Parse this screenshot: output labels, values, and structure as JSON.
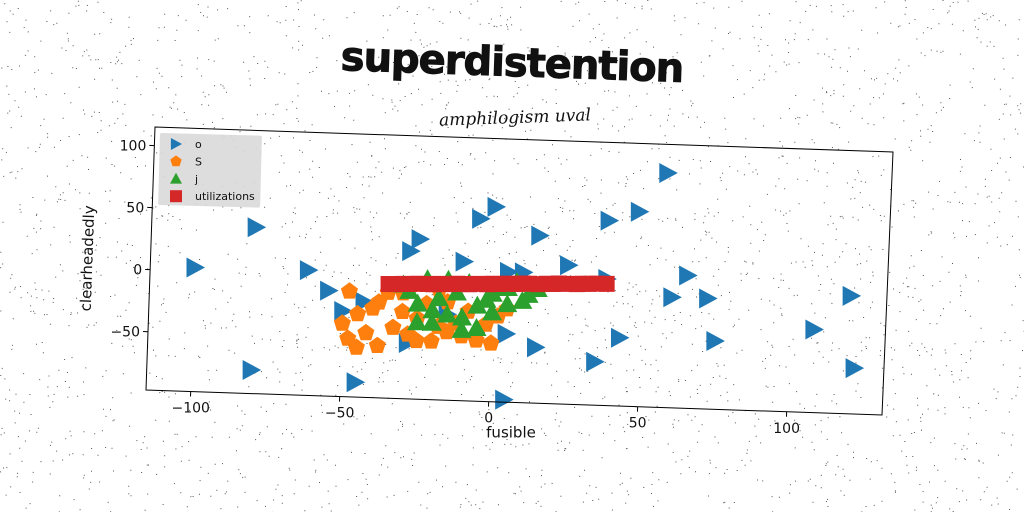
{
  "chart_data": {
    "type": "scatter",
    "title": "superdistention",
    "subtitle": "amphilogism uval",
    "xlabel": "fusible",
    "ylabel": "clearheadedly",
    "xlim": [
      -115,
      132
    ],
    "ylim": [
      -97,
      115
    ],
    "xticks": [
      -100,
      -50,
      0,
      50,
      100
    ],
    "yticks": [
      -50,
      0,
      50,
      100
    ],
    "legend_position": "top-left",
    "grid": false,
    "series": [
      {
        "name": "o",
        "marker": "triangle-right",
        "color": "#1f77b4",
        "points": [
          [
            -100,
            3
          ],
          [
            -80,
            37
          ],
          [
            -62,
            4
          ],
          [
            -55,
            -12
          ],
          [
            -50,
            -28
          ],
          [
            -43,
            -20
          ],
          [
            -28,
            22
          ],
          [
            -25,
            32
          ],
          [
            -15,
            -28
          ],
          [
            -10,
            15
          ],
          [
            -5,
            50
          ],
          [
            0,
            60
          ],
          [
            5,
            8
          ],
          [
            10,
            8
          ],
          [
            5,
            -42
          ],
          [
            15,
            38
          ],
          [
            15,
            -52
          ],
          [
            25,
            15
          ],
          [
            35,
            -62
          ],
          [
            38,
            5
          ],
          [
            38,
            52
          ],
          [
            43,
            -42
          ],
          [
            48,
            60
          ],
          [
            57,
            92
          ],
          [
            60,
            -8
          ],
          [
            65,
            10
          ],
          [
            72,
            -8
          ],
          [
            75,
            -42
          ],
          [
            108,
            -30
          ],
          [
            120,
            -2
          ],
          [
            122,
            -60
          ],
          [
            -80,
            -78
          ],
          [
            -45,
            -85
          ],
          [
            5,
            -95
          ],
          [
            -28,
            -52
          ]
        ]
      },
      {
        "name": "S",
        "marker": "pentagon",
        "color": "#ff7f0e",
        "points": [
          [
            -48,
            -12
          ],
          [
            -45,
            -30
          ],
          [
            -50,
            -38
          ],
          [
            -48,
            -50
          ],
          [
            -45,
            -57
          ],
          [
            -42,
            -45
          ],
          [
            -38,
            -55
          ],
          [
            -38,
            -20
          ],
          [
            -35,
            -12
          ],
          [
            -33,
            -40
          ],
          [
            -30,
            -27
          ],
          [
            -28,
            -45
          ],
          [
            -25,
            -32
          ],
          [
            -22,
            -20
          ],
          [
            -20,
            -50
          ],
          [
            -18,
            -38
          ],
          [
            -15,
            -42
          ],
          [
            -12,
            -35
          ],
          [
            -10,
            -45
          ],
          [
            -8,
            -25
          ],
          [
            -5,
            -48
          ],
          [
            -2,
            -35
          ],
          [
            0,
            -50
          ],
          [
            2,
            -28
          ],
          [
            5,
            -22
          ],
          [
            -30,
            -12
          ],
          [
            -18,
            -8
          ],
          [
            -40,
            -25
          ],
          [
            -25,
            -50
          ],
          [
            -15,
            -18
          ]
        ]
      },
      {
        "name": "j",
        "marker": "triangle-up",
        "color": "#2ca02c",
        "points": [
          [
            -30,
            -5
          ],
          [
            -25,
            -20
          ],
          [
            -22,
            0
          ],
          [
            -20,
            -25
          ],
          [
            -18,
            -15
          ],
          [
            -15,
            0
          ],
          [
            -15,
            -28
          ],
          [
            -12,
            -10
          ],
          [
            -10,
            -30
          ],
          [
            -8,
            -2
          ],
          [
            -5,
            -20
          ],
          [
            -2,
            -15
          ],
          [
            0,
            -10
          ],
          [
            2,
            -5
          ],
          [
            5,
            -18
          ],
          [
            8,
            0
          ],
          [
            10,
            -15
          ],
          [
            12,
            -10
          ],
          [
            15,
            -5
          ],
          [
            -20,
            -35
          ],
          [
            -10,
            -40
          ],
          [
            -5,
            -38
          ],
          [
            0,
            -25
          ],
          [
            5,
            -5
          ],
          [
            -25,
            -35
          ],
          [
            -28,
            -10
          ]
        ]
      },
      {
        "name": "utilizations",
        "marker": "square",
        "color": "#d62728",
        "points": [
          [
            -35,
            -5
          ],
          [
            -33,
            -5
          ],
          [
            -30,
            -4.5
          ],
          [
            -28,
            -4.5
          ],
          [
            -25,
            -4
          ],
          [
            -22,
            -4
          ],
          [
            -20,
            -4
          ],
          [
            -18,
            -3.5
          ],
          [
            -15,
            -3.5
          ],
          [
            -12,
            -3
          ],
          [
            -10,
            -3
          ],
          [
            -8,
            -3
          ],
          [
            -5,
            -2.5
          ],
          [
            -2,
            -2.5
          ],
          [
            0,
            -2
          ],
          [
            2,
            -2
          ],
          [
            5,
            -1.5
          ],
          [
            8,
            -1.5
          ],
          [
            10,
            -1
          ],
          [
            12,
            -1
          ],
          [
            15,
            -1
          ],
          [
            18,
            -0.5
          ],
          [
            20,
            -0.5
          ],
          [
            22,
            0
          ],
          [
            25,
            0
          ],
          [
            28,
            0
          ],
          [
            30,
            0.5
          ],
          [
            32,
            0.5
          ],
          [
            35,
            1
          ],
          [
            38,
            1
          ]
        ]
      }
    ]
  }
}
